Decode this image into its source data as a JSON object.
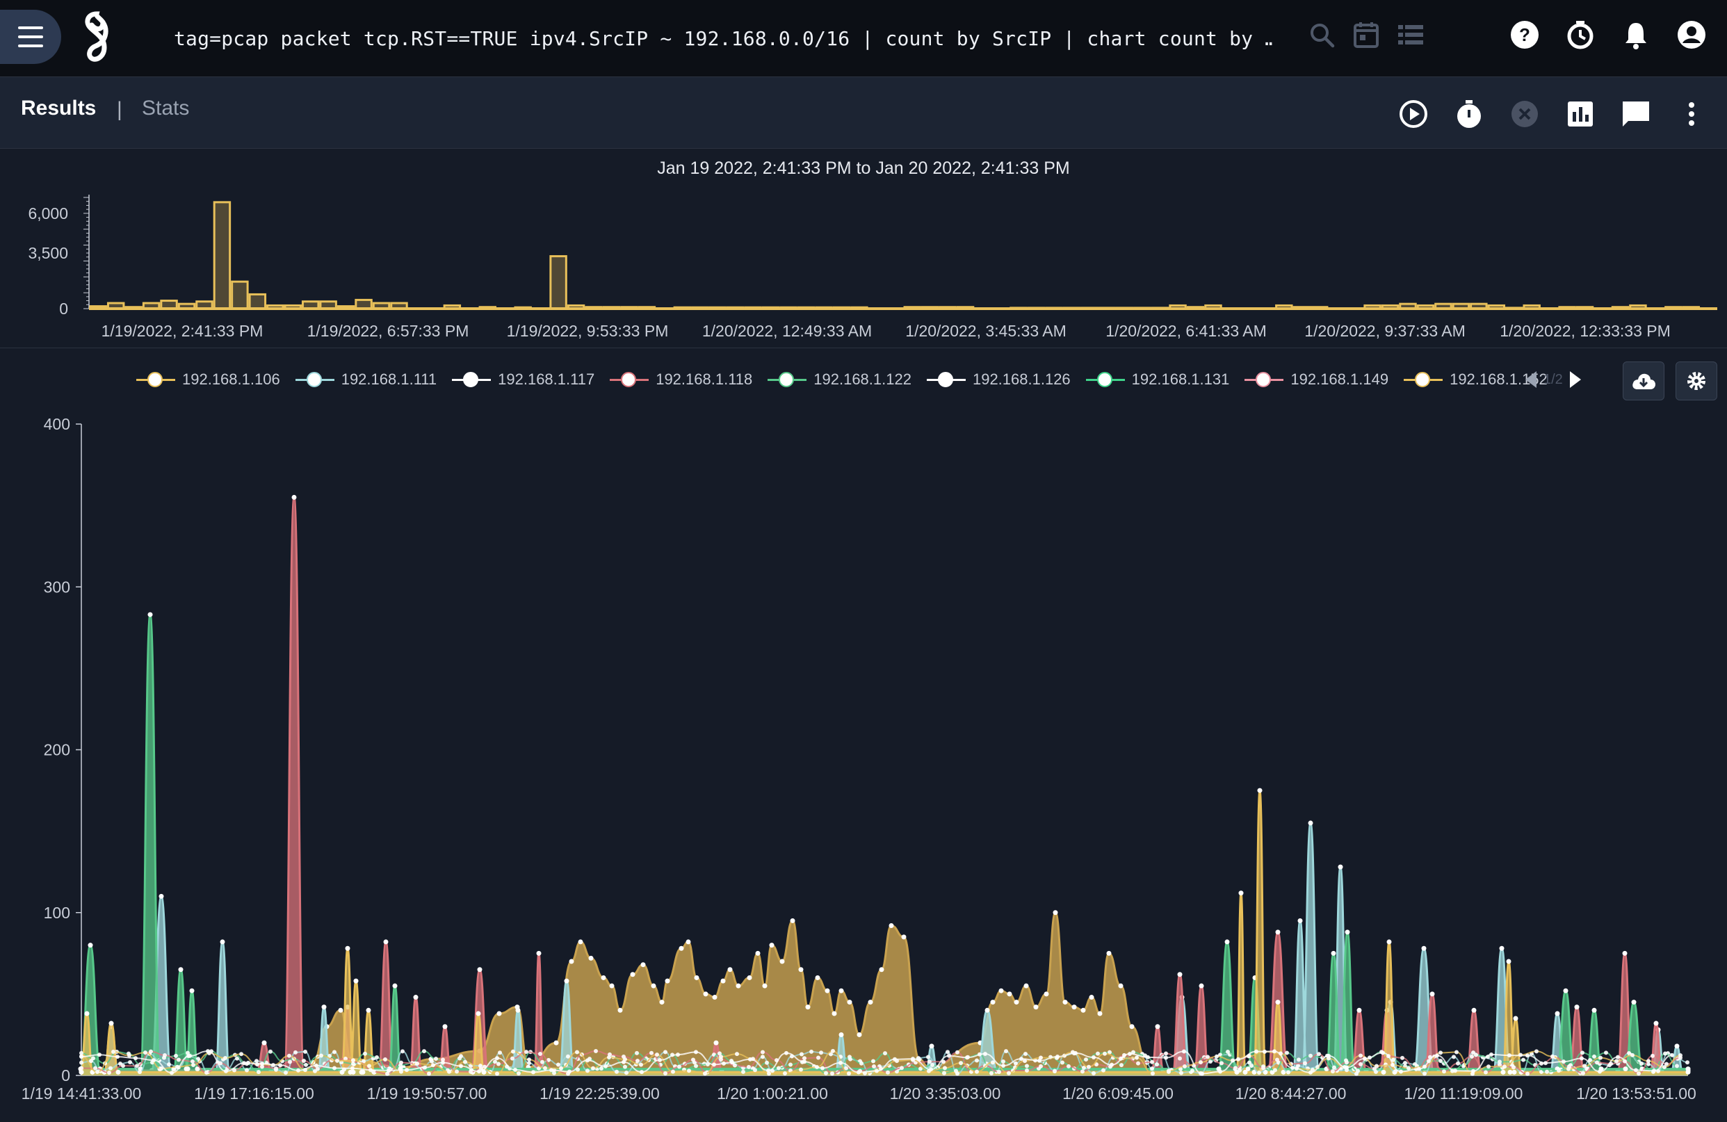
{
  "topbar": {
    "query": "tag=pcap packet tcp.RST==TRUE ipv4.SrcIP ~ 192.168.0.0/16 | count by SrcIP | chart count by …",
    "icons": [
      "menu-icon",
      "gravwell-logo",
      "search-icon",
      "calendar-icon",
      "list-icon",
      "help-icon",
      "timer-icon",
      "bell-icon",
      "account-icon"
    ]
  },
  "results_bar": {
    "tab_results": "Results",
    "divider": "|",
    "tab_stats": "Stats",
    "icons": [
      "play-icon",
      "stopwatch-icon",
      "cancel-icon",
      "chart-icon",
      "comment-icon",
      "more-vert-icon"
    ]
  },
  "overview": {
    "title": "Jan 19 2022, 2:41:33 PM to Jan 20 2022, 2:41:33 PM"
  },
  "legend": {
    "page": "1/2"
  },
  "colors": {
    "gold": "#e8c05a",
    "teal": "#9ed8dc",
    "green": "#57c98a",
    "red": "#d9737a",
    "tan": "#c9a24f"
  },
  "chart_data": [
    {
      "type": "bar",
      "title": "",
      "ylim": [
        0,
        7000
      ],
      "yticks": [
        "6,000",
        "3,500",
        "0"
      ],
      "ytick_values": [
        6000,
        3500,
        0
      ],
      "xticks": [
        "1/19/2022, 2:41:33 PM",
        "1/19/2022, 6:57:33 PM",
        "1/19/2022, 9:53:33 PM",
        "1/20/2022, 12:49:33 AM",
        "1/20/2022, 3:45:33 AM",
        "1/20/2022, 6:41:33 AM",
        "1/20/2022, 9:37:33 AM",
        "1/20/2022, 12:33:33 PM"
      ],
      "values": [
        150,
        350,
        100,
        350,
        500,
        300,
        450,
        6700,
        1700,
        900,
        200,
        200,
        450,
        450,
        150,
        550,
        350,
        350,
        0,
        0,
        200,
        0,
        100,
        0,
        80,
        0,
        3300,
        200,
        100,
        100,
        100,
        100,
        0,
        80,
        80,
        80,
        80,
        80,
        80,
        80,
        80,
        80,
        80,
        80,
        0,
        0,
        100,
        100,
        100,
        100,
        0,
        0,
        50,
        50,
        50,
        50,
        50,
        50,
        50,
        50,
        50,
        200,
        100,
        200,
        0,
        0,
        0,
        200,
        100,
        100,
        0,
        0,
        200,
        200,
        300,
        200,
        300,
        300,
        300,
        200,
        50,
        200,
        0,
        100,
        100,
        0,
        100,
        200,
        0,
        100,
        100,
        0
      ]
    },
    {
      "type": "area",
      "title": "",
      "ylim": [
        0,
        400
      ],
      "yticks": [
        "400",
        "300",
        "200",
        "100",
        "0"
      ],
      "ytick_values": [
        400,
        300,
        200,
        100,
        0
      ],
      "xticks": [
        "1/19 14:41:33.00",
        "1/19 17:16:15.00",
        "1/19 19:50:57.00",
        "1/19 22:25:39.00",
        "1/20 1:00:21.00",
        "1/20 3:35:03.00",
        "1/20 6:09:45.00",
        "1/20 8:44:27.00",
        "1/20 11:19:09.00",
        "1/20 13:53:51.00"
      ],
      "series": [
        {
          "name": "192.168.1.106",
          "color": "#e8c05a",
          "points": [
            [
              0,
              5
            ],
            [
              3,
              38
            ],
            [
              6,
              10
            ],
            [
              11,
              30
            ],
            [
              16,
              8
            ],
            [
              40,
              0
            ],
            [
              48,
              10
            ],
            [
              60,
              8
            ],
            [
              79,
              0
            ]
          ],
          "smooth": true
        },
        {
          "name": "192.168.1.111",
          "color": "#9ed8dc",
          "points": [
            [
              0,
              2
            ],
            [
              4,
              30
            ],
            [
              7,
              5
            ],
            [
              9,
              12
            ],
            [
              12,
              8
            ],
            [
              15,
              38
            ],
            [
              18,
              4
            ],
            [
              20,
              18
            ],
            [
              24,
              82
            ],
            [
              27,
              10
            ],
            [
              31,
              12
            ],
            [
              35,
              8
            ],
            [
              40,
              6
            ],
            [
              46,
              12
            ],
            [
              51,
              40
            ],
            [
              54,
              8
            ],
            [
              60,
              3
            ],
            [
              66,
              5
            ],
            [
              71,
              3
            ],
            [
              76,
              5
            ],
            [
              79,
              0
            ]
          ]
        },
        {
          "name": "192.168.1.117",
          "color": "#ffffff",
          "points": [],
          "smooth": true
        },
        {
          "name": "192.168.1.118",
          "color": "#d9737a",
          "points": [
            [
              0,
              3
            ],
            [
              5,
              18
            ],
            [
              8,
              5
            ],
            [
              12,
              10
            ],
            [
              16,
              20
            ],
            [
              20,
              10
            ],
            [
              22,
              28
            ],
            [
              25,
              5
            ],
            [
              28,
              8
            ],
            [
              30,
              10
            ],
            [
              32,
              12
            ],
            [
              35,
              8
            ],
            [
              36,
              12
            ],
            [
              39,
              5
            ],
            [
              41,
              20
            ],
            [
              43,
              10
            ],
            [
              46,
              8
            ],
            [
              49,
              12
            ],
            [
              52,
              5
            ],
            [
              55,
              10
            ],
            [
              60,
              6
            ],
            [
              65,
              8
            ],
            [
              70,
              3
            ],
            [
              75,
              5
            ],
            [
              79,
              0
            ]
          ]
        },
        {
          "name": "192.168.1.122",
          "color": "#57c98a",
          "points": [
            [
              0,
              5
            ],
            [
              1,
              82
            ],
            [
              4,
              10
            ],
            [
              7,
              40
            ],
            [
              12,
              5
            ],
            [
              16,
              8
            ],
            [
              20,
              280
            ],
            [
              22,
              40
            ],
            [
              26,
              60
            ],
            [
              29,
              10
            ],
            [
              32,
              60
            ],
            [
              35,
              30
            ],
            [
              38,
              5
            ],
            [
              42,
              20
            ],
            [
              46,
              8
            ],
            [
              50,
              5
            ],
            [
              55,
              10
            ],
            [
              60,
              4
            ],
            [
              65,
              8
            ],
            [
              70,
              5
            ],
            [
              75,
              4
            ],
            [
              79,
              0
            ]
          ]
        },
        {
          "name": "192.168.1.126",
          "color": "#ffffff",
          "points": [],
          "smooth": true
        },
        {
          "name": "192.168.1.131",
          "color": "#3fd38a",
          "points": [],
          "smooth": true
        },
        {
          "name": "192.168.1.149",
          "color": "#e891a0",
          "points": [],
          "smooth": true
        },
        {
          "name": "192.168.1.152",
          "color": "#e8c05a",
          "points": [],
          "smooth": true
        }
      ]
    }
  ]
}
